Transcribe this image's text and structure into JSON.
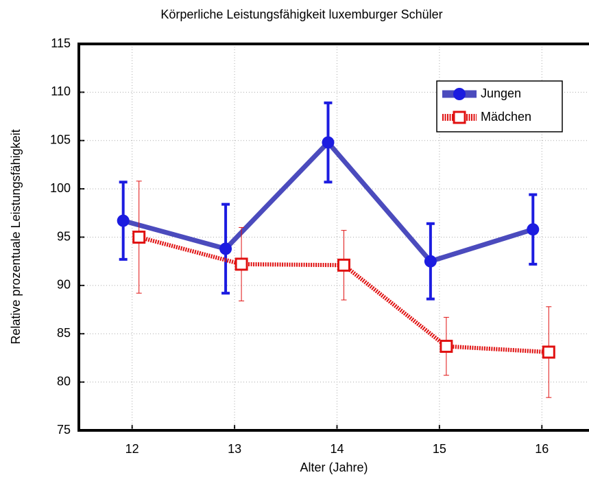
{
  "chart_data": {
    "type": "line",
    "title": "Körperliche Leistungsfähigkeit luxemburger Schüler",
    "x_label": "Alter (Jahre)",
    "y_label": "Relative prozentuale Leistungsfähigkeit",
    "x": [
      12,
      13,
      14,
      15,
      16
    ],
    "xlim": [
      11.48,
      16.46
    ],
    "xticks": [
      12,
      13,
      14,
      15,
      16
    ],
    "ylim": [
      75,
      115
    ],
    "yticks": [
      75,
      80,
      85,
      90,
      95,
      100,
      105,
      110,
      115
    ],
    "grid": true,
    "legend": "upper right",
    "series": [
      {
        "name": "Jungen",
        "color": "#1c1ce0",
        "values": [
          96.7,
          93.8,
          104.8,
          92.5,
          95.8
        ],
        "errors": [
          4.0,
          4.6,
          4.1,
          3.9,
          3.6
        ]
      },
      {
        "name": "Mädchen",
        "color": "#e01010",
        "values": [
          95.0,
          92.2,
          92.1,
          83.7,
          83.1
        ],
        "errors": [
          5.8,
          3.8,
          3.6,
          3.0,
          4.7
        ]
      }
    ]
  }
}
